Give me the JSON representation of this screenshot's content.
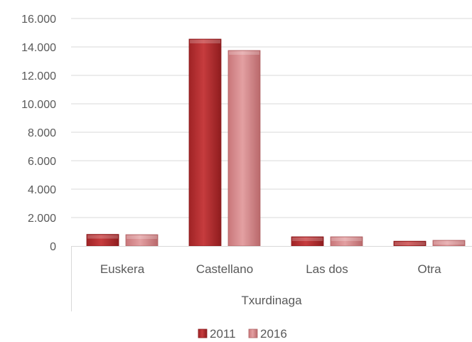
{
  "chart_data": {
    "type": "bar",
    "group_label": "Txurdinaga",
    "categories": [
      "Euskera",
      "Castellano",
      "Las dos",
      "Otra"
    ],
    "series": [
      {
        "name": "2011",
        "values": [
          820,
          14550,
          650,
          340
        ],
        "color": "#c0393b"
      },
      {
        "name": "2016",
        "values": [
          800,
          13750,
          650,
          400
        ],
        "color": "#dc8c8e"
      }
    ],
    "ylim": [
      0,
      16000
    ],
    "y_ticks": [
      {
        "value": 0,
        "label": "0"
      },
      {
        "value": 2000,
        "label": "2.000"
      },
      {
        "value": 4000,
        "label": "4.000"
      },
      {
        "value": 6000,
        "label": "6.000"
      },
      {
        "value": 8000,
        "label": "8.000"
      },
      {
        "value": 10000,
        "label": "10.000"
      },
      {
        "value": 12000,
        "label": "12.000"
      },
      {
        "value": 14000,
        "label": "14.000"
      },
      {
        "value": 16000,
        "label": "16.000"
      }
    ],
    "grid": true,
    "legend_position": "bottom"
  }
}
